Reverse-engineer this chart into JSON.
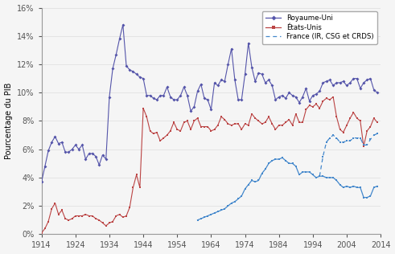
{
  "title": "",
  "ylabel": "Pourcentage du PIB",
  "xlabel": "",
  "ylim": [
    0,
    0.16
  ],
  "yticks": [
    0,
    0.02,
    0.04,
    0.06,
    0.08,
    0.1,
    0.12,
    0.14,
    0.16
  ],
  "ytick_labels": [
    "0%",
    "2%",
    "4%",
    "6%",
    "8%",
    "10%",
    "12%",
    "14%",
    "16%"
  ],
  "xlim": [
    1914,
    2014
  ],
  "xticks": [
    1914,
    1924,
    1934,
    1944,
    1954,
    1964,
    1974,
    1984,
    1994,
    2004,
    2014
  ],
  "uk_color": "#5555aa",
  "us_color": "#bb4444",
  "fr_color": "#4488cc",
  "uk_years": [
    1914,
    1915,
    1916,
    1917,
    1918,
    1919,
    1920,
    1921,
    1922,
    1923,
    1924,
    1925,
    1926,
    1927,
    1928,
    1929,
    1930,
    1931,
    1932,
    1933,
    1934,
    1935,
    1936,
    1937,
    1938,
    1939,
    1940,
    1941,
    1942,
    1943,
    1944,
    1945,
    1946,
    1947,
    1948,
    1949,
    1950,
    1951,
    1952,
    1953,
    1954,
    1955,
    1956,
    1957,
    1958,
    1959,
    1960,
    1961,
    1962,
    1963,
    1964,
    1965,
    1966,
    1967,
    1968,
    1969,
    1970,
    1971,
    1972,
    1973,
    1974,
    1975,
    1976,
    1977,
    1978,
    1979,
    1980,
    1981,
    1982,
    1983,
    1984,
    1985,
    1986,
    1987,
    1988,
    1989,
    1990,
    1991,
    1992,
    1993,
    1994,
    1995,
    1996,
    1997,
    1998,
    1999,
    2000,
    2001,
    2002,
    2003,
    2004,
    2005,
    2006,
    2007,
    2008,
    2009,
    2010,
    2011,
    2012,
    2013
  ],
  "uk_values": [
    0.037,
    0.048,
    0.059,
    0.065,
    0.069,
    0.064,
    0.065,
    0.058,
    0.058,
    0.06,
    0.063,
    0.06,
    0.063,
    0.053,
    0.057,
    0.057,
    0.055,
    0.049,
    0.056,
    0.053,
    0.097,
    0.117,
    0.127,
    0.138,
    0.148,
    0.119,
    0.116,
    0.115,
    0.113,
    0.111,
    0.11,
    0.098,
    0.098,
    0.096,
    0.095,
    0.098,
    0.098,
    0.104,
    0.097,
    0.095,
    0.095,
    0.098,
    0.104,
    0.098,
    0.087,
    0.09,
    0.101,
    0.106,
    0.096,
    0.095,
    0.088,
    0.107,
    0.105,
    0.109,
    0.108,
    0.12,
    0.131,
    0.109,
    0.095,
    0.095,
    0.113,
    0.135,
    0.118,
    0.108,
    0.114,
    0.113,
    0.107,
    0.109,
    0.105,
    0.095,
    0.097,
    0.098,
    0.096,
    0.1,
    0.098,
    0.097,
    0.093,
    0.097,
    0.103,
    0.094,
    0.098,
    0.099,
    0.101,
    0.107,
    0.108,
    0.109,
    0.105,
    0.107,
    0.107,
    0.108,
    0.105,
    0.107,
    0.11,
    0.11,
    0.103,
    0.107,
    0.109,
    0.11,
    0.102,
    0.1
  ],
  "us_years": [
    1914,
    1915,
    1916,
    1917,
    1918,
    1919,
    1920,
    1921,
    1922,
    1923,
    1924,
    1925,
    1926,
    1927,
    1928,
    1929,
    1930,
    1931,
    1932,
    1933,
    1934,
    1935,
    1936,
    1937,
    1938,
    1939,
    1940,
    1941,
    1942,
    1943,
    1944,
    1945,
    1946,
    1947,
    1948,
    1949,
    1950,
    1951,
    1952,
    1953,
    1954,
    1955,
    1956,
    1957,
    1958,
    1959,
    1960,
    1961,
    1962,
    1963,
    1964,
    1965,
    1966,
    1967,
    1968,
    1969,
    1970,
    1971,
    1972,
    1973,
    1974,
    1975,
    1976,
    1977,
    1978,
    1979,
    1980,
    1981,
    1982,
    1983,
    1984,
    1985,
    1986,
    1987,
    1988,
    1989,
    1990,
    1991,
    1992,
    1993,
    1994,
    1995,
    1996,
    1997,
    1998,
    1999,
    2000,
    2001,
    2002,
    2003,
    2004,
    2005,
    2006,
    2007,
    2008,
    2009,
    2010,
    2011,
    2012,
    2013
  ],
  "us_values": [
    0.001,
    0.004,
    0.009,
    0.018,
    0.022,
    0.014,
    0.017,
    0.011,
    0.01,
    0.011,
    0.013,
    0.013,
    0.013,
    0.014,
    0.013,
    0.013,
    0.011,
    0.01,
    0.008,
    0.006,
    0.008,
    0.009,
    0.013,
    0.014,
    0.012,
    0.013,
    0.019,
    0.033,
    0.042,
    0.033,
    0.089,
    0.083,
    0.073,
    0.071,
    0.072,
    0.066,
    0.068,
    0.07,
    0.073,
    0.079,
    0.074,
    0.073,
    0.079,
    0.08,
    0.074,
    0.08,
    0.082,
    0.076,
    0.076,
    0.076,
    0.073,
    0.074,
    0.077,
    0.083,
    0.081,
    0.078,
    0.077,
    0.078,
    0.078,
    0.074,
    0.078,
    0.077,
    0.085,
    0.082,
    0.08,
    0.078,
    0.079,
    0.083,
    0.078,
    0.074,
    0.077,
    0.077,
    0.079,
    0.081,
    0.077,
    0.085,
    0.079,
    0.079,
    0.088,
    0.091,
    0.09,
    0.092,
    0.089,
    0.094,
    0.096,
    0.095,
    0.097,
    0.083,
    0.074,
    0.072,
    0.077,
    0.082,
    0.086,
    0.082,
    0.08,
    0.062,
    0.073,
    0.076,
    0.082,
    0.079
  ],
  "fr_solid_years": [
    1960,
    1961,
    1962,
    1963,
    1964,
    1965,
    1966,
    1967,
    1968,
    1969,
    1970,
    1971,
    1972,
    1973,
    1974,
    1975,
    1976,
    1977,
    1978,
    1979,
    1980,
    1981,
    1982,
    1983,
    1984,
    1985,
    1986,
    1987,
    1988,
    1989,
    1990,
    1991,
    1992,
    1993,
    1994,
    1995,
    1996,
    1997,
    1998,
    1999,
    2000,
    2001,
    2002,
    2003,
    2004,
    2005,
    2006,
    2007,
    2008,
    2009,
    2010,
    2011,
    2012,
    2013
  ],
  "fr_solid_values": [
    0.01,
    0.011,
    0.012,
    0.013,
    0.014,
    0.015,
    0.016,
    0.017,
    0.018,
    0.02,
    0.022,
    0.023,
    0.025,
    0.027,
    0.032,
    0.035,
    0.038,
    0.037,
    0.038,
    0.043,
    0.046,
    0.05,
    0.052,
    0.053,
    0.053,
    0.054,
    0.052,
    0.05,
    0.05,
    0.048,
    0.042,
    0.044,
    0.044,
    0.044,
    0.042,
    0.04,
    0.041,
    0.041,
    0.04,
    0.04,
    0.04,
    0.038,
    0.035,
    0.033,
    0.034,
    0.033,
    0.034,
    0.033,
    0.033,
    0.026,
    0.026,
    0.027,
    0.033,
    0.034
  ],
  "fr_dashed_years": [
    1996,
    1997,
    1998,
    1999,
    2000,
    2001,
    2002,
    2003,
    2004,
    2005,
    2006,
    2007,
    2008,
    2009,
    2010,
    2011,
    2012,
    2013
  ],
  "fr_dashed_values": [
    0.041,
    0.055,
    0.065,
    0.068,
    0.07,
    0.068,
    0.065,
    0.065,
    0.066,
    0.066,
    0.068,
    0.068,
    0.068,
    0.063,
    0.063,
    0.067,
    0.07,
    0.071
  ],
  "legend_labels": [
    "Royaume-Uni",
    "États-Unis",
    "France (IR, CSG et CRDS)"
  ],
  "background_color": "#f5f5f5"
}
